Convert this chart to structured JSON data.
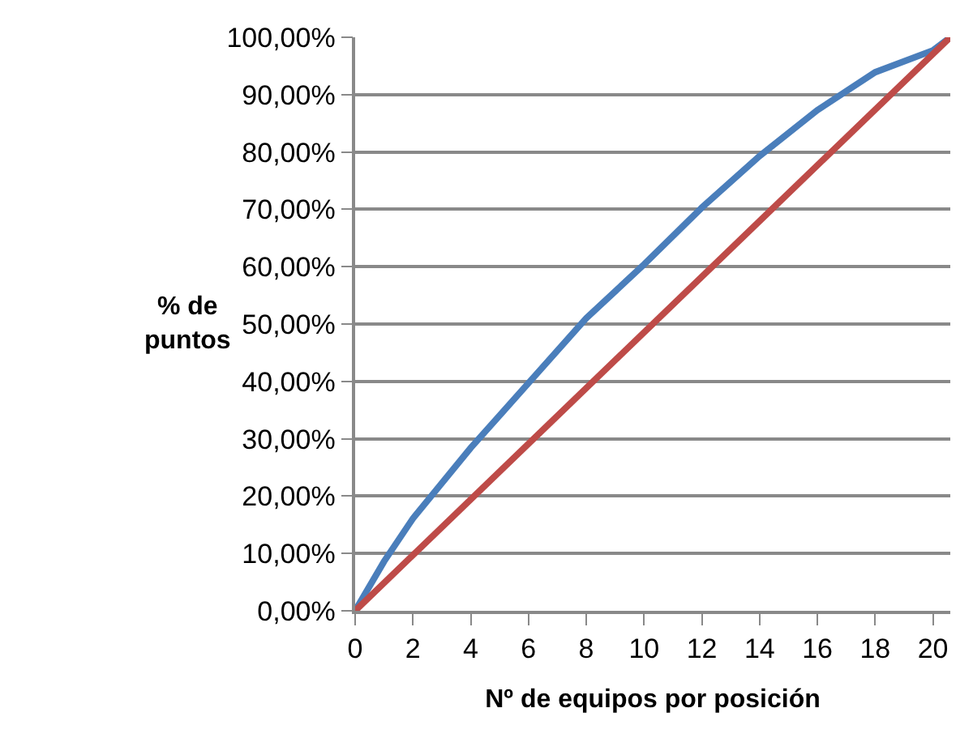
{
  "chart_data": {
    "type": "line",
    "xlabel": "Nº de equipos por posición",
    "ylabel": "% de puntos",
    "xlim": [
      0,
      20.6
    ],
    "xticks": [
      0,
      2,
      4,
      6,
      8,
      10,
      12,
      14,
      16,
      18,
      20
    ],
    "ylim": [
      0,
      100
    ],
    "yticks": [
      {
        "value": 0,
        "label": "0,00%"
      },
      {
        "value": 10,
        "label": "10,00%"
      },
      {
        "value": 20,
        "label": "20,00%"
      },
      {
        "value": 30,
        "label": "30,00%"
      },
      {
        "value": 40,
        "label": "40,00%"
      },
      {
        "value": 50,
        "label": "50,00%"
      },
      {
        "value": 60,
        "label": "60,00%"
      },
      {
        "value": 70,
        "label": "70,00%"
      },
      {
        "value": 80,
        "label": "80,00%"
      },
      {
        "value": 90,
        "label": "90,00%"
      },
      {
        "value": 100,
        "label": "100,00%"
      }
    ],
    "grid": "y",
    "marker": "none",
    "line_style": "solid",
    "series": [
      {
        "color": "#4a7ebb",
        "x": [
          0,
          1,
          2,
          4,
          6,
          8,
          10,
          12,
          14,
          16,
          18,
          20,
          20.6
        ],
        "values": [
          0,
          8.6,
          16.1,
          28.4,
          39.7,
          51,
          60.4,
          70.3,
          79.3,
          87.3,
          93.9,
          97.7,
          100
        ]
      },
      {
        "color": "#be4b48",
        "x": [
          0,
          20.6
        ],
        "values": [
          0,
          100
        ]
      }
    ]
  }
}
